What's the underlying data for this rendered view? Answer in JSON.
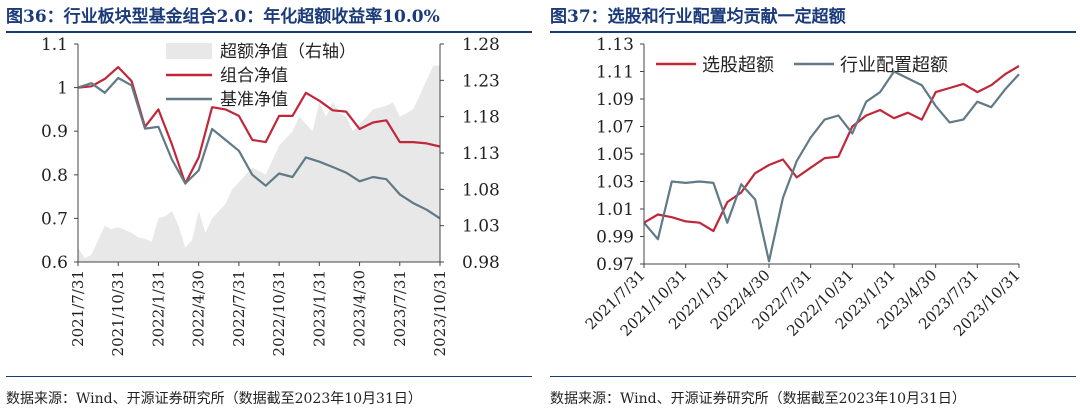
{
  "chart_data": [
    {
      "type": "line",
      "title": "图36：行业板块型基金组合2.0：年化超额收益率10.0%",
      "source": "数据来源：Wind、开源证券研究所（数据截至2023年10月31日）",
      "tick_labels": [
        "2021/7/31",
        "2021/10/31",
        "2022/1/31",
        "2022/4/30",
        "2022/7/31",
        "2022/10/31",
        "2023/1/31",
        "2023/4/30",
        "2023/7/31",
        "2023/10/31"
      ],
      "x_range": [
        0,
        27
      ],
      "ylim": [
        0.6,
        1.1
      ],
      "y_ticks": [
        0.6,
        0.7,
        0.8,
        0.9,
        1,
        1.1
      ],
      "y2lim": [
        0.98,
        1.28
      ],
      "y2_ticks": [
        0.98,
        1.03,
        1.08,
        1.13,
        1.18,
        1.23,
        1.28
      ],
      "legend_position": "top-right",
      "series": [
        {
          "name": "超额净值（右轴）",
          "kind": "area",
          "axis": "right",
          "color": "#e8e8e8",
          "x": [
            0,
            0.5,
            1,
            1.5,
            2,
            2.5,
            3,
            4,
            4.5,
            5,
            5.5,
            6,
            6.5,
            7,
            7.5,
            8,
            8.5,
            9,
            9.5,
            10,
            10.5,
            11,
            11.5,
            12,
            13,
            14,
            14.5,
            15,
            16,
            16.5,
            17,
            17.5,
            18,
            18.5,
            19,
            19.5,
            20,
            20.5,
            21,
            21.5,
            22,
            23,
            23.5,
            24,
            25,
            25.5,
            26,
            26.5,
            27
          ],
          "values": [
            1.0,
            0.985,
            0.99,
            1.01,
            1.03,
            1.025,
            1.028,
            1.02,
            1.014,
            1.012,
            1.008,
            1.04,
            1.043,
            1.05,
            1.03,
            1.0,
            1.01,
            1.05,
            1.02,
            1.04,
            1.05,
            1.06,
            1.08,
            1.09,
            1.11,
            1.1,
            1.12,
            1.14,
            1.16,
            1.18,
            1.17,
            1.16,
            1.2,
            1.18,
            1.2,
            1.185,
            1.18,
            1.16,
            1.17,
            1.18,
            1.19,
            1.195,
            1.2,
            1.18,
            1.19,
            1.21,
            1.23,
            1.25,
            1.25
          ]
        },
        {
          "name": "组合净值",
          "kind": "line",
          "axis": "left",
          "color": "#c0283a",
          "x": [
            0,
            1,
            2,
            3,
            4,
            5,
            6,
            7,
            8,
            9,
            10,
            11,
            12,
            13,
            14,
            15,
            16,
            17,
            18,
            19,
            20,
            21,
            22,
            23,
            24,
            25,
            26,
            27
          ],
          "values": [
            1.0,
            1.003,
            1.02,
            1.047,
            1.015,
            0.91,
            0.95,
            0.87,
            0.78,
            0.84,
            0.955,
            0.95,
            0.935,
            0.88,
            0.875,
            0.935,
            0.935,
            0.988,
            0.97,
            0.948,
            0.945,
            0.905,
            0.92,
            0.925,
            0.875,
            0.875,
            0.872,
            0.865
          ]
        },
        {
          "name": "基准净值",
          "kind": "line",
          "axis": "left",
          "color": "#607a86",
          "x": [
            0,
            1,
            2,
            3,
            4,
            5,
            6,
            7,
            8,
            9,
            10,
            11,
            12,
            13,
            14,
            15,
            16,
            17,
            18,
            19,
            20,
            21,
            22,
            23,
            24,
            25,
            26,
            27
          ],
          "values": [
            1.0,
            1.01,
            0.988,
            1.022,
            1.005,
            0.906,
            0.91,
            0.835,
            0.78,
            0.81,
            0.905,
            0.88,
            0.855,
            0.8,
            0.775,
            0.803,
            0.795,
            0.84,
            0.83,
            0.818,
            0.805,
            0.785,
            0.795,
            0.79,
            0.755,
            0.735,
            0.72,
            0.7
          ]
        }
      ]
    },
    {
      "type": "line",
      "title": "图37：选股和行业配置均贡献一定超额",
      "source": "数据来源：Wind、开源证券研究所（数据截至2023年10月31日）",
      "tick_labels": [
        "2021/7/31",
        "2021/10/31",
        "2022/1/31",
        "2022/4/30",
        "2022/7/31",
        "2022/10/31",
        "2023/1/31",
        "2023/4/30",
        "2023/7/31",
        "2023/10/31"
      ],
      "x_range": [
        0,
        27
      ],
      "ylim": [
        0.97,
        1.13
      ],
      "y_ticks": [
        0.97,
        0.99,
        1.01,
        1.03,
        1.05,
        1.07,
        1.09,
        1.11,
        1.13
      ],
      "legend_position": "top-left",
      "series": [
        {
          "name": "选股超额",
          "kind": "line",
          "color": "#c0283a",
          "x": [
            0,
            1,
            2,
            3,
            4,
            5,
            6,
            7,
            8,
            9,
            10,
            11,
            12,
            13,
            14,
            15,
            16,
            17,
            18,
            19,
            20,
            21,
            22,
            23,
            24,
            25,
            26,
            27
          ],
          "values": [
            1.0,
            1.006,
            1.004,
            1.001,
            1.0,
            0.994,
            1.015,
            1.022,
            1.036,
            1.042,
            1.046,
            1.033,
            1.04,
            1.047,
            1.048,
            1.07,
            1.078,
            1.082,
            1.076,
            1.08,
            1.075,
            1.095,
            1.098,
            1.101,
            1.095,
            1.1,
            1.108,
            1.114
          ]
        },
        {
          "name": "行业配置超额",
          "kind": "line",
          "color": "#607a86",
          "x": [
            0,
            1,
            2,
            3,
            4,
            5,
            6,
            7,
            8,
            9,
            10,
            11,
            12,
            13,
            14,
            15,
            16,
            17,
            18,
            19,
            20,
            21,
            22,
            23,
            24,
            25,
            26,
            27
          ],
          "values": [
            1.0,
            0.988,
            1.03,
            1.029,
            1.03,
            1.029,
            1.0,
            1.028,
            1.017,
            0.972,
            1.018,
            1.045,
            1.062,
            1.075,
            1.078,
            1.065,
            1.088,
            1.095,
            1.11,
            1.105,
            1.1,
            1.085,
            1.073,
            1.075,
            1.088,
            1.084,
            1.097,
            1.108
          ]
        }
      ]
    }
  ]
}
